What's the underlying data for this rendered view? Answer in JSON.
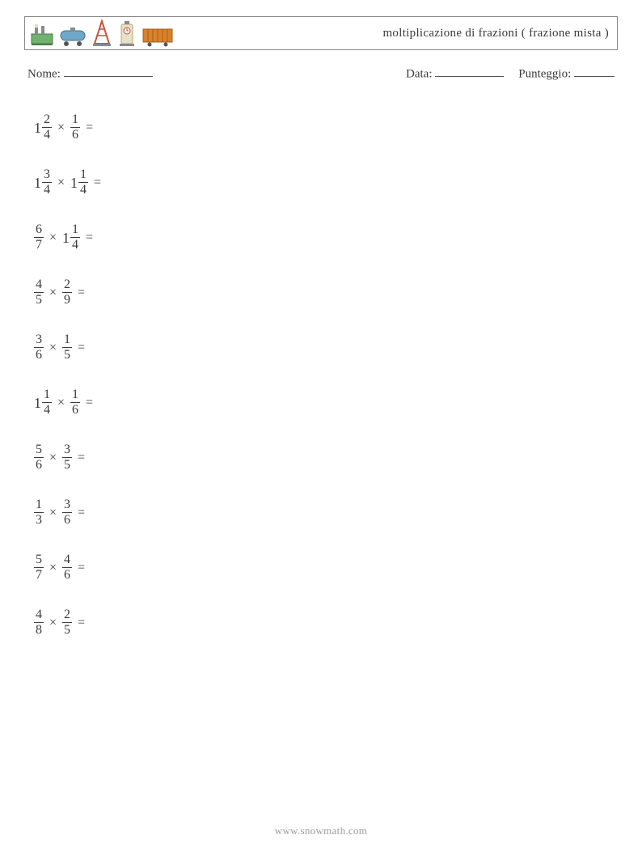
{
  "header": {
    "title": "moltiplicazione di frazioni ( frazione mista )",
    "icons": [
      "plant-icon",
      "tank-icon",
      "derrick-icon",
      "pump-icon",
      "container-icon"
    ]
  },
  "info": {
    "name_label": "Nome:",
    "date_label": "Data:",
    "score_label": "Punteggio:",
    "name_blank_w": 110,
    "date_blank_w": 85,
    "score_blank_w": 50
  },
  "problems": [
    {
      "a": {
        "whole": "1",
        "num": "2",
        "den": "4"
      },
      "b": {
        "whole": "",
        "num": "1",
        "den": "6"
      }
    },
    {
      "a": {
        "whole": "1",
        "num": "3",
        "den": "4"
      },
      "b": {
        "whole": "1",
        "num": "1",
        "den": "4"
      }
    },
    {
      "a": {
        "whole": "",
        "num": "6",
        "den": "7"
      },
      "b": {
        "whole": "1",
        "num": "1",
        "den": "4"
      }
    },
    {
      "a": {
        "whole": "",
        "num": "4",
        "den": "5"
      },
      "b": {
        "whole": "",
        "num": "2",
        "den": "9"
      }
    },
    {
      "a": {
        "whole": "",
        "num": "3",
        "den": "6"
      },
      "b": {
        "whole": "",
        "num": "1",
        "den": "5"
      }
    },
    {
      "a": {
        "whole": "1",
        "num": "1",
        "den": "4"
      },
      "b": {
        "whole": "",
        "num": "1",
        "den": "6"
      }
    },
    {
      "a": {
        "whole": "",
        "num": "5",
        "den": "6"
      },
      "b": {
        "whole": "",
        "num": "3",
        "den": "5"
      }
    },
    {
      "a": {
        "whole": "",
        "num": "1",
        "den": "3"
      },
      "b": {
        "whole": "",
        "num": "3",
        "den": "6"
      }
    },
    {
      "a": {
        "whole": "",
        "num": "5",
        "den": "7"
      },
      "b": {
        "whole": "",
        "num": "4",
        "den": "6"
      }
    },
    {
      "a": {
        "whole": "",
        "num": "4",
        "den": "8"
      },
      "b": {
        "whole": "",
        "num": "2",
        "den": "5"
      }
    }
  ],
  "symbols": {
    "times": "×",
    "equals": "="
  },
  "footer": {
    "url": "www.snowmath.com"
  },
  "colors": {
    "text": "#3a3a3a",
    "border": "#888888",
    "blank": "#555555",
    "footer": "#9a9a9a",
    "icon_green": "#6fb36f",
    "icon_orange": "#d9822b",
    "icon_red": "#c94f3d",
    "icon_blue": "#6fa8c9",
    "icon_grey": "#8a8a8a"
  }
}
